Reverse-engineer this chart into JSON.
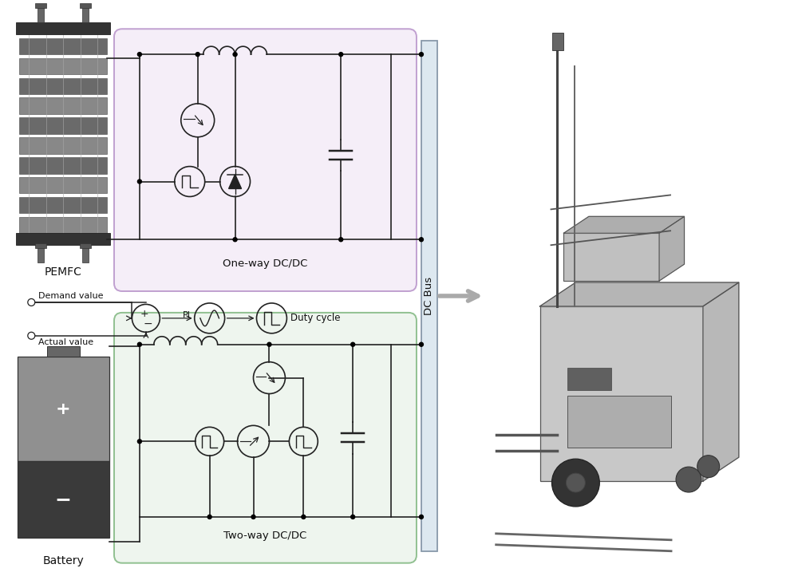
{
  "bg_color": "#ffffff",
  "panel1_facecolor": "#f5eef8",
  "panel1_edgecolor": "#c0a0d0",
  "panel2_facecolor": "#eef5ee",
  "panel2_edgecolor": "#90c090",
  "ctrl_facecolor": "#eef5ee",
  "ctrl_edgecolor": "#90c090",
  "line_color": "#222222",
  "text_color": "#111111",
  "bus_facecolor": "#dde8f0",
  "bus_edgecolor": "#8899aa",
  "arrow_color": "#aaaaaa",
  "labels": {
    "pemfc": "PEMFC",
    "battery": "Battery",
    "oneway": "One-way DC/DC",
    "twoway": "Two-way DC/DC",
    "dcbus": "DC Bus",
    "demand": "Demand value",
    "actual": "Actual value",
    "duty": "Duty cycle",
    "pi": "PI"
  },
  "figsize": [
    10.0,
    7.27
  ],
  "dpi": 100,
  "xlim": [
    0,
    10
  ],
  "ylim": [
    0,
    7.27
  ]
}
